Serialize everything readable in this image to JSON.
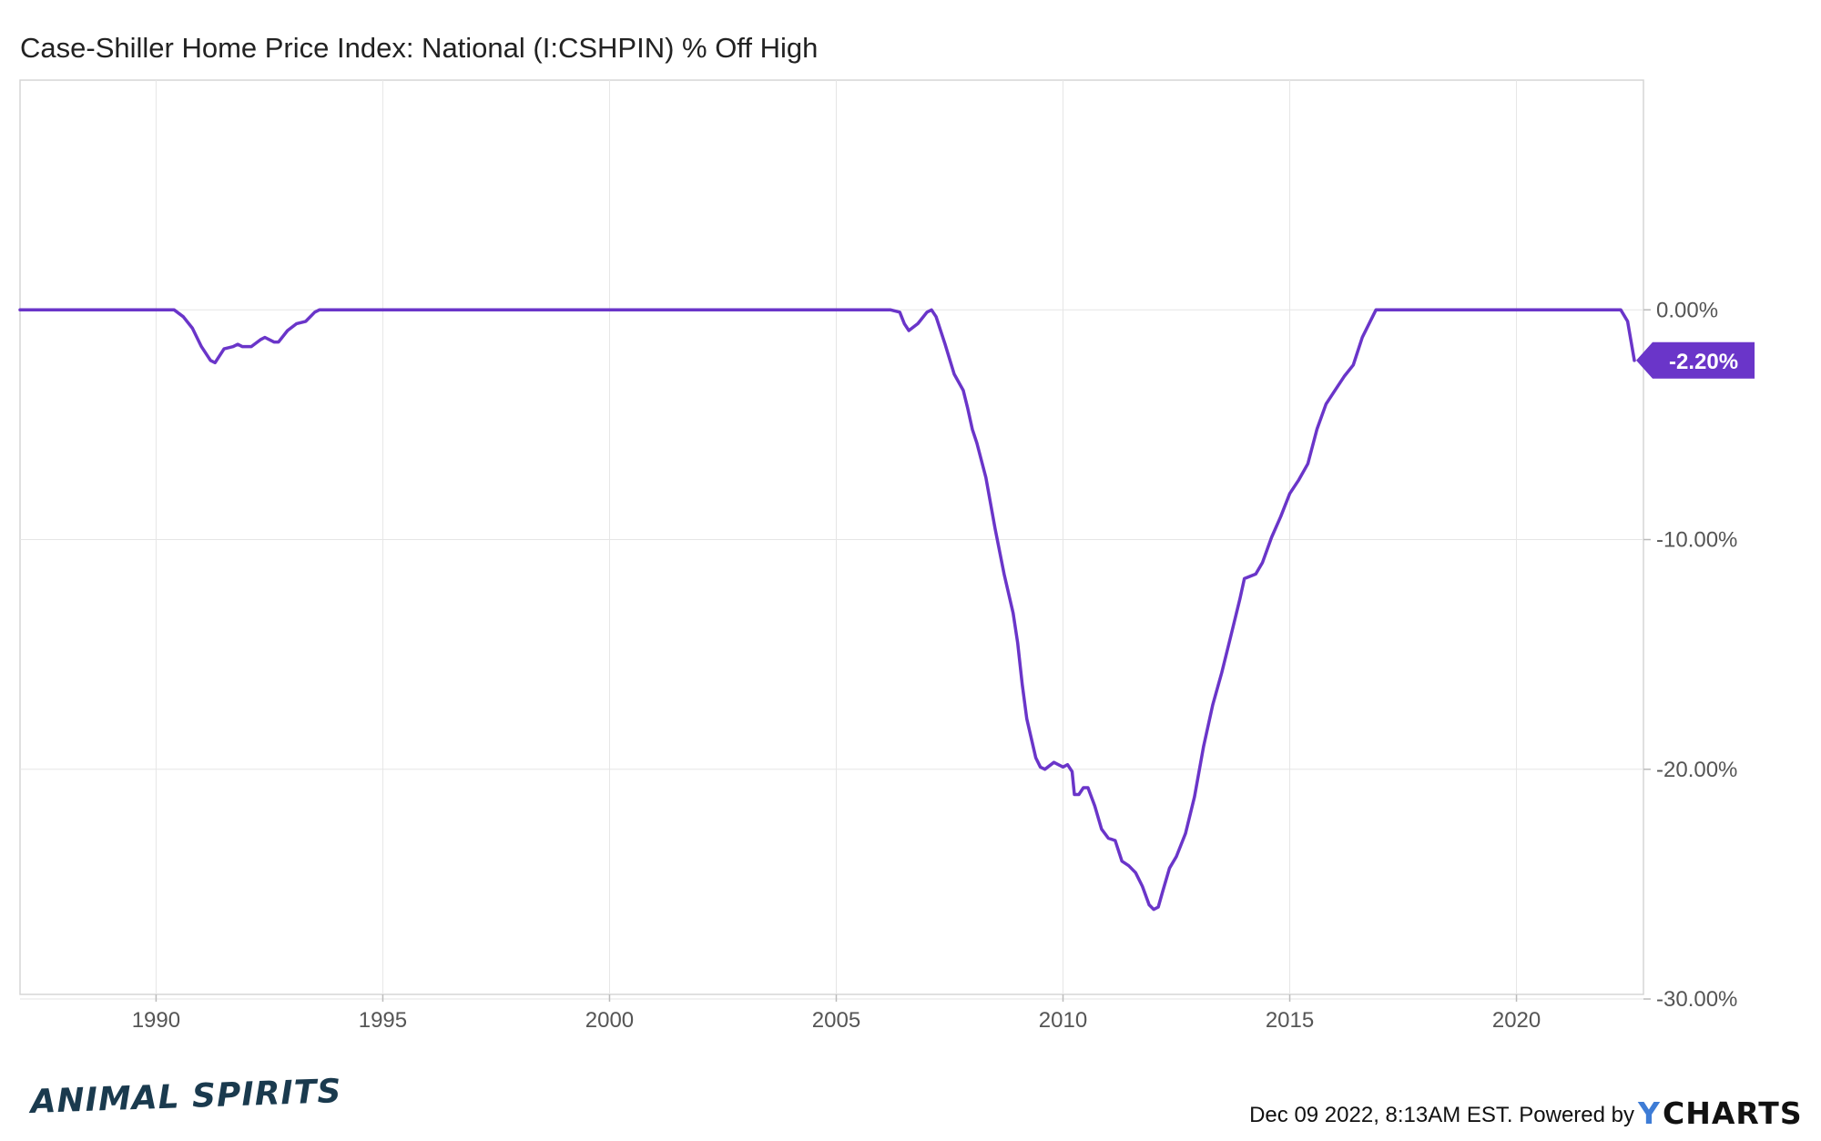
{
  "chart_data": {
    "type": "line",
    "title": "Case-Shiller Home Price Index: National (I:CSHPIN) % Off High",
    "xlabel": "",
    "ylabel": "",
    "x_ticks": [
      "1990",
      "1995",
      "2000",
      "2005",
      "2010",
      "2015",
      "2020"
    ],
    "y_ticks": [
      "0.00%",
      "-10.00%",
      "-20.00%",
      "-30.00%"
    ],
    "xlim": [
      1987.0,
      2022.8
    ],
    "ylim": [
      -29.8,
      10.0
    ],
    "grid": true,
    "line_color": "#6a35c9",
    "last_value_label": "-2.20%",
    "series": [
      {
        "points": [
          [
            1987.0,
            0.0
          ],
          [
            1990.4,
            0.0
          ],
          [
            1990.6,
            -0.3
          ],
          [
            1990.8,
            -0.8
          ],
          [
            1991.0,
            -1.6
          ],
          [
            1991.2,
            -2.2
          ],
          [
            1991.3,
            -2.3
          ],
          [
            1991.5,
            -1.7
          ],
          [
            1991.7,
            -1.6
          ],
          [
            1991.8,
            -1.5
          ],
          [
            1991.9,
            -1.6
          ],
          [
            1992.1,
            -1.6
          ],
          [
            1992.3,
            -1.3
          ],
          [
            1992.4,
            -1.2
          ],
          [
            1992.6,
            -1.4
          ],
          [
            1992.7,
            -1.4
          ],
          [
            1992.9,
            -0.9
          ],
          [
            1993.1,
            -0.6
          ],
          [
            1993.3,
            -0.5
          ],
          [
            1993.5,
            -0.1
          ],
          [
            1993.6,
            0.0
          ],
          [
            2006.2,
            0.0
          ],
          [
            2006.4,
            -0.1
          ],
          [
            2006.5,
            -0.6
          ],
          [
            2006.6,
            -0.9
          ],
          [
            2006.8,
            -0.6
          ],
          [
            2007.0,
            -0.1
          ],
          [
            2007.1,
            0.0
          ],
          [
            2007.2,
            -0.3
          ],
          [
            2007.4,
            -1.5
          ],
          [
            2007.6,
            -2.8
          ],
          [
            2007.8,
            -3.5
          ],
          [
            2007.9,
            -4.3
          ],
          [
            2008.0,
            -5.2
          ],
          [
            2008.1,
            -5.8
          ],
          [
            2008.3,
            -7.3
          ],
          [
            2008.5,
            -9.5
          ],
          [
            2008.7,
            -11.5
          ],
          [
            2008.9,
            -13.2
          ],
          [
            2009.0,
            -14.5
          ],
          [
            2009.1,
            -16.3
          ],
          [
            2009.2,
            -17.8
          ],
          [
            2009.4,
            -19.5
          ],
          [
            2009.5,
            -19.9
          ],
          [
            2009.6,
            -20.0
          ],
          [
            2009.8,
            -19.7
          ],
          [
            2010.0,
            -19.9
          ],
          [
            2010.1,
            -19.8
          ],
          [
            2010.2,
            -20.1
          ],
          [
            2010.25,
            -21.1
          ],
          [
            2010.35,
            -21.1
          ],
          [
            2010.45,
            -20.8
          ],
          [
            2010.55,
            -20.8
          ],
          [
            2010.7,
            -21.6
          ],
          [
            2010.85,
            -22.6
          ],
          [
            2011.0,
            -23.0
          ],
          [
            2011.15,
            -23.1
          ],
          [
            2011.3,
            -24.0
          ],
          [
            2011.45,
            -24.2
          ],
          [
            2011.6,
            -24.5
          ],
          [
            2011.75,
            -25.1
          ],
          [
            2011.9,
            -25.9
          ],
          [
            2012.0,
            -26.1
          ],
          [
            2012.1,
            -26.0
          ],
          [
            2012.2,
            -25.3
          ],
          [
            2012.35,
            -24.3
          ],
          [
            2012.5,
            -23.8
          ],
          [
            2012.7,
            -22.8
          ],
          [
            2012.9,
            -21.2
          ],
          [
            2013.1,
            -19.0
          ],
          [
            2013.3,
            -17.2
          ],
          [
            2013.5,
            -15.8
          ],
          [
            2013.7,
            -14.2
          ],
          [
            2013.9,
            -12.6
          ],
          [
            2014.0,
            -11.7
          ],
          [
            2014.25,
            -11.5
          ],
          [
            2014.4,
            -11.0
          ],
          [
            2014.6,
            -9.9
          ],
          [
            2014.8,
            -9.0
          ],
          [
            2015.0,
            -8.0
          ],
          [
            2015.2,
            -7.4
          ],
          [
            2015.4,
            -6.7
          ],
          [
            2015.6,
            -5.2
          ],
          [
            2015.8,
            -4.1
          ],
          [
            2016.0,
            -3.5
          ],
          [
            2016.2,
            -2.9
          ],
          [
            2016.4,
            -2.4
          ],
          [
            2016.6,
            -1.2
          ],
          [
            2016.9,
            0.0
          ],
          [
            2022.3,
            0.0
          ],
          [
            2022.45,
            -0.5
          ],
          [
            2022.6,
            -2.2
          ]
        ]
      }
    ]
  },
  "footer": {
    "timestamp": "Dec 09 2022, 8:13AM EST. Powered by",
    "brand_y": "Y",
    "brand_rest": "CHARTS"
  },
  "logo": {
    "text": "ANIMAL SPIRITS"
  }
}
